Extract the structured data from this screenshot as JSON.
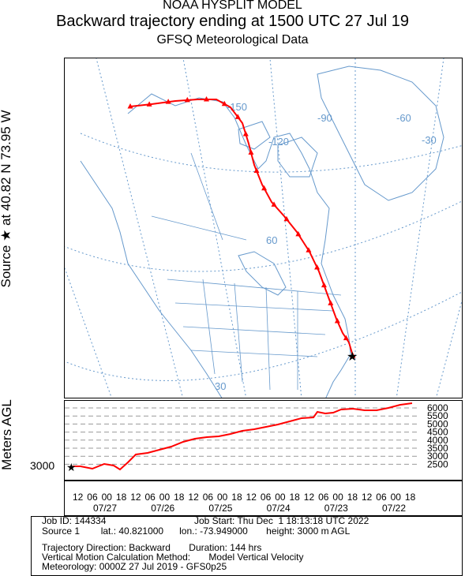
{
  "header": {
    "line1": "NOAA HYSPLIT MODEL",
    "line2": "Backward trajectory ending at 1500 UTC 27 Jul 19",
    "line3": "GFSQ Meteorological Data"
  },
  "source_label": "Source ★  at   40.82 N   73.95 W",
  "profile_axis_label": "Meters AGL",
  "start_height_label": "3000",
  "map": {
    "grid_labels": [
      "-150",
      "-120",
      "-90",
      "-60",
      "-30",
      "60",
      "30"
    ],
    "trajectory_color": "#ff0000",
    "map_line_color": "#6699cc",
    "source_symbol": "star"
  },
  "profile": {
    "y_ticks": [
      "6000",
      "5500",
      "5000",
      "4500",
      "4000",
      "3500",
      "3000",
      "2500"
    ]
  },
  "time_axis": {
    "hour_labels": [
      "12",
      "06",
      "00",
      "18",
      "12",
      "06",
      "00",
      "18",
      "12",
      "06",
      "00",
      "18",
      "12",
      "06",
      "00",
      "18",
      "12",
      "06",
      "00",
      "18",
      "12",
      "06",
      "00",
      "18"
    ],
    "date_labels": [
      "07/27",
      "07/26",
      "07/25",
      "07/24",
      "07/23",
      "07/22"
    ]
  },
  "info": {
    "job_id": "Job ID: 144334",
    "job_start": "Job Start: Thu Dec  1 18:13:18 UTC 2022",
    "source": "Source 1        lat.: 40.821000      lon.: -73.949000       height: 3000 m AGL",
    "direction": "Trajectory Direction: Backward       Duration: 144 hrs",
    "vertical": "Vertical Motion Calculation Method:       Model Vertical Velocity",
    "meteorology": "Meteorology: 0000Z 27 Jul 2019 - GFS0p25"
  }
}
